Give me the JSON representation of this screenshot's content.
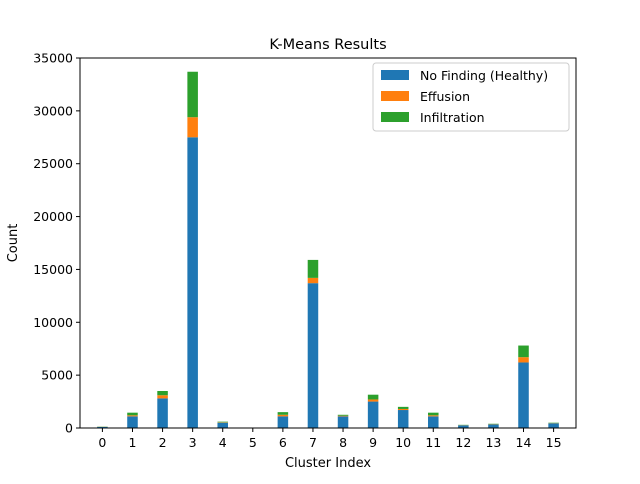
{
  "chart_data": {
    "type": "bar",
    "stacked": true,
    "title": "K-Means Results",
    "xlabel": "Cluster Index",
    "ylabel": "Count",
    "categories": [
      "0",
      "1",
      "2",
      "3",
      "4",
      "5",
      "6",
      "7",
      "8",
      "9",
      "10",
      "11",
      "12",
      "13",
      "14",
      "15"
    ],
    "ylim": [
      0,
      35000
    ],
    "yticks": [
      0,
      5000,
      10000,
      15000,
      20000,
      25000,
      30000,
      35000
    ],
    "grid": false,
    "legend_position": "top-right",
    "series": [
      {
        "name": "No Finding (Healthy)",
        "color": "#1f77b4",
        "values": [
          100,
          1100,
          2800,
          27500,
          500,
          20,
          1100,
          13700,
          1100,
          2500,
          1700,
          1100,
          250,
          330,
          6200,
          440
        ]
      },
      {
        "name": "Effusion",
        "color": "#ff7f0e",
        "values": [
          10,
          100,
          300,
          1900,
          40,
          5,
          150,
          500,
          60,
          200,
          100,
          100,
          20,
          30,
          500,
          20
        ]
      },
      {
        "name": "Infiltration",
        "color": "#2ca02c",
        "values": [
          20,
          250,
          400,
          4300,
          60,
          5,
          250,
          1700,
          90,
          450,
          200,
          250,
          30,
          40,
          1100,
          40
        ]
      }
    ]
  }
}
